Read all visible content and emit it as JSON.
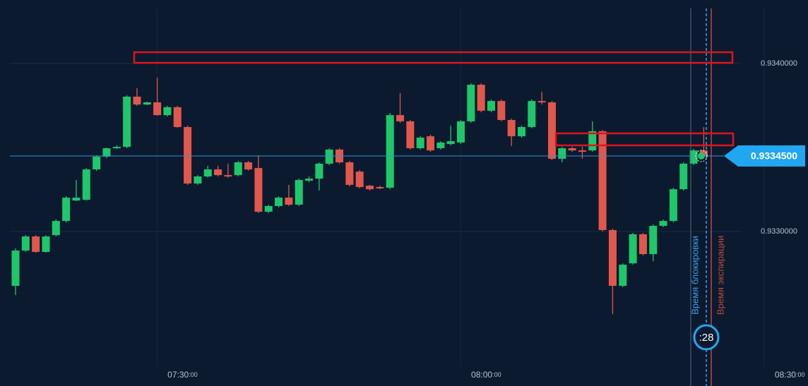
{
  "chart_data": {
    "type": "candlestick",
    "open": [
      0.932677,
      0.932887,
      0.932971,
      0.932879,
      0.932979,
      0.933063,
      0.933185,
      0.933189,
      0.93337,
      0.933446,
      0.933496,
      0.933504,
      0.933803,
      0.933756,
      0.933769,
      0.933693,
      0.93374,
      0.933622,
      0.933286,
      0.933328,
      0.93337,
      0.933336,
      0.933336,
      0.933412,
      0.933378,
      0.933118,
      0.933152,
      0.933202,
      0.93316,
      0.933303,
      0.933315,
      0.933404,
      0.933488,
      0.933412,
      0.933357,
      0.933273,
      0.933265,
      0.933261,
      0.933693,
      0.933656,
      0.933496,
      0.933567,
      0.933496,
      0.933521,
      0.93353,
      0.933656,
      0.933874,
      0.933719,
      0.933777,
      0.933664,
      0.933567,
      0.933622,
      0.933777,
      0.933769,
      0.933433,
      0.933496,
      0.933483,
      0.933483,
      0.933597,
      0.933009,
      0.932677,
      0.932811,
      0.932984,
      0.932866,
      0.933034,
      0.933063,
      0.933252,
      0.933404,
      0.933483
    ],
    "high": [
      0.9329,
      0.932979,
      0.932979,
      0.932979,
      0.933072,
      0.93321,
      0.933307,
      0.933378,
      0.933454,
      0.9335,
      0.933513,
      0.933811,
      0.933853,
      0.933773,
      0.933916,
      0.933748,
      0.933748,
      0.93363,
      0.933336,
      0.933391,
      0.933391,
      0.933404,
      0.93342,
      0.93342,
      0.933454,
      0.93316,
      0.93321,
      0.933278,
      0.933315,
      0.933328,
      0.933412,
      0.933496,
      0.933496,
      0.93342,
      0.933366,
      0.933278,
      0.933273,
      0.933706,
      0.933824,
      0.933664,
      0.933567,
      0.933576,
      0.933538,
      0.93363,
      0.933664,
      0.933882,
      0.933882,
      0.933786,
      0.933786,
      0.933672,
      0.93363,
      0.933786,
      0.933832,
      0.933777,
      0.933504,
      0.933504,
      0.933504,
      0.933656,
      0.933605,
      0.933017,
      0.932811,
      0.932992,
      0.932992,
      0.933042,
      0.933072,
      0.933261,
      0.933412,
      0.933492,
      0.933622
    ],
    "low": [
      0.932622,
      0.932879,
      0.932874,
      0.932874,
      0.932971,
      0.933055,
      0.933181,
      0.933185,
      0.933362,
      0.933437,
      0.933492,
      0.933496,
      0.933748,
      0.933752,
      0.933689,
      0.933685,
      0.933618,
      0.933278,
      0.933278,
      0.93332,
      0.933328,
      0.93332,
      0.933328,
      0.933362,
      0.93311,
      0.93311,
      0.933143,
      0.933152,
      0.933152,
      0.933294,
      0.933244,
      0.933395,
      0.933404,
      0.933269,
      0.933257,
      0.933244,
      0.933252,
      0.933252,
      0.933647,
      0.933488,
      0.933488,
      0.933475,
      0.933488,
      0.933513,
      0.933521,
      0.933647,
      0.93371,
      0.93371,
      0.933656,
      0.933509,
      0.933559,
      0.933614,
      0.933756,
      0.933425,
      0.933412,
      0.933475,
      0.933433,
      0.933475,
      0.933,
      0.932509,
      0.932669,
      0.932803,
      0.932858,
      0.932824,
      0.933026,
      0.933055,
      0.933244,
      0.933395,
      0.933446
    ],
    "close": [
      0.932887,
      0.932971,
      0.932879,
      0.932971,
      0.933063,
      0.933202,
      0.933202,
      0.93337,
      0.933446,
      0.933496,
      0.933504,
      0.933803,
      0.933756,
      0.933769,
      0.933693,
      0.93374,
      0.933622,
      0.933286,
      0.933328,
      0.93337,
      0.933336,
      0.933328,
      0.933412,
      0.93337,
      0.933118,
      0.933152,
      0.933202,
      0.93316,
      0.933307,
      0.933315,
      0.933404,
      0.933488,
      0.933412,
      0.933278,
      0.933265,
      0.933252,
      0.933261,
      0.933693,
      0.933656,
      0.933496,
      0.933559,
      0.933483,
      0.93353,
      0.933538,
      0.933656,
      0.933874,
      0.933719,
      0.933777,
      0.933664,
      0.933567,
      0.933622,
      0.933777,
      0.933769,
      0.933433,
      0.933496,
      0.933483,
      0.933475,
      0.933597,
      0.933009,
      0.932677,
      0.932803,
      0.932984,
      0.932866,
      0.933034,
      0.933063,
      0.933252,
      0.933404,
      0.933483,
      0.93345
    ],
    "up_color": "#1ec76a",
    "down_color": "#e2574c",
    "ylim": [
      0.932081,
      0.934378
    ],
    "yticks": [
      {
        "value": 0.934,
        "label": "0.9340000"
      },
      {
        "value": 0.933,
        "label": "0.9330000"
      }
    ],
    "xlim": [
      -1.535,
      78.3
    ],
    "xticks": [
      {
        "value": 16.5,
        "label": "07:30:00"
      },
      {
        "value": 46.5,
        "label": "08:00:00"
      },
      {
        "value": 76.5,
        "label": "08:30:00"
      }
    ],
    "grid": true,
    "current_price": {
      "value": 0.93345,
      "label": "0.9334500"
    },
    "lock_label": "Время блокировки",
    "expiry_label": "Время экспирации",
    "timer": ":28"
  }
}
